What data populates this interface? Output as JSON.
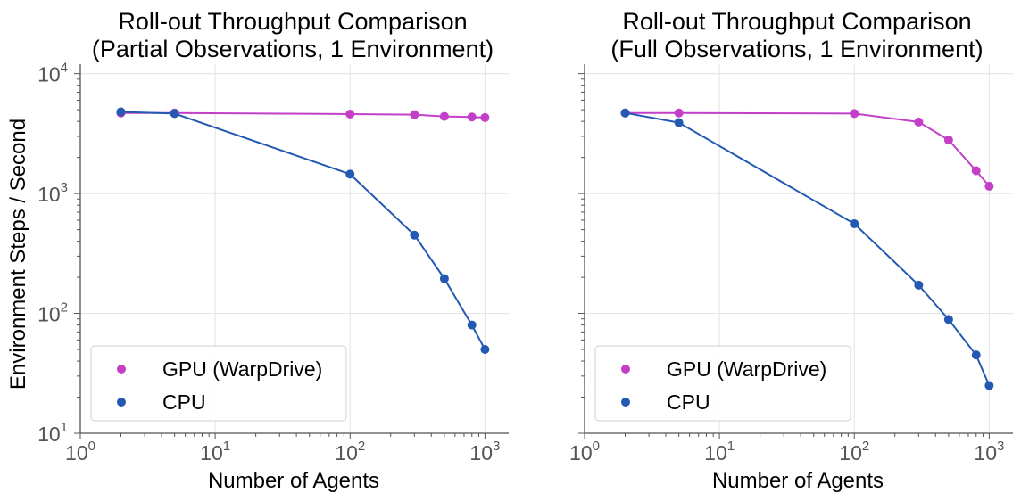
{
  "chart_data": [
    {
      "type": "line",
      "title_lines": [
        "Roll-out Throughput Comparison",
        "(Partial Observations, 1 Environment)"
      ],
      "xlabel": "Number of Agents",
      "ylabel": "Environment Steps / Second",
      "xscale": "log",
      "yscale": "log",
      "xlim": [
        1,
        1500
      ],
      "ylim": [
        10,
        12000
      ],
      "grid": true,
      "legend_position": "lower-left",
      "x_ticks": [
        {
          "base": "10",
          "exp": "0",
          "value": 1
        },
        {
          "base": "10",
          "exp": "1",
          "value": 10
        },
        {
          "base": "10",
          "exp": "2",
          "value": 100
        },
        {
          "base": "10",
          "exp": "3",
          "value": 1000
        }
      ],
      "y_ticks": [
        {
          "base": "10",
          "exp": "1",
          "value": 10
        },
        {
          "base": "10",
          "exp": "2",
          "value": 100
        },
        {
          "base": "10",
          "exp": "3",
          "value": 1000
        },
        {
          "base": "10",
          "exp": "4",
          "value": 10000
        }
      ],
      "series": [
        {
          "name": "GPU (WarpDrive)",
          "color": "#c33fc8",
          "x": [
            2,
            5,
            100,
            300,
            500,
            800,
            1000
          ],
          "y": [
            4700,
            4700,
            4600,
            4550,
            4400,
            4350,
            4300
          ]
        },
        {
          "name": "CPU",
          "color": "#2359b3",
          "x": [
            2,
            5,
            100,
            300,
            500,
            800,
            1000
          ],
          "y": [
            4800,
            4650,
            1450,
            450,
            195,
            80,
            50
          ]
        }
      ]
    },
    {
      "type": "line",
      "title_lines": [
        "Roll-out Throughput Comparison",
        "(Full Observations, 1 Environment)"
      ],
      "xlabel": "Number of Agents",
      "ylabel": "",
      "xscale": "log",
      "yscale": "log",
      "xlim": [
        1,
        1500
      ],
      "ylim": [
        10,
        12000
      ],
      "grid": true,
      "legend_position": "lower-left",
      "x_ticks": [
        {
          "base": "10",
          "exp": "0",
          "value": 1
        },
        {
          "base": "10",
          "exp": "1",
          "value": 10
        },
        {
          "base": "10",
          "exp": "2",
          "value": 100
        },
        {
          "base": "10",
          "exp": "3",
          "value": 1000
        }
      ],
      "y_ticks": [],
      "series": [
        {
          "name": "GPU (WarpDrive)",
          "color": "#c33fc8",
          "x": [
            2,
            5,
            100,
            300,
            500,
            800,
            1000
          ],
          "y": [
            4700,
            4700,
            4650,
            3950,
            2800,
            1550,
            1150
          ]
        },
        {
          "name": "CPU",
          "color": "#2359b3",
          "x": [
            2,
            5,
            100,
            300,
            500,
            800,
            1000
          ],
          "y": [
            4700,
            3900,
            560,
            172,
            89,
            45,
            25
          ]
        }
      ]
    }
  ]
}
